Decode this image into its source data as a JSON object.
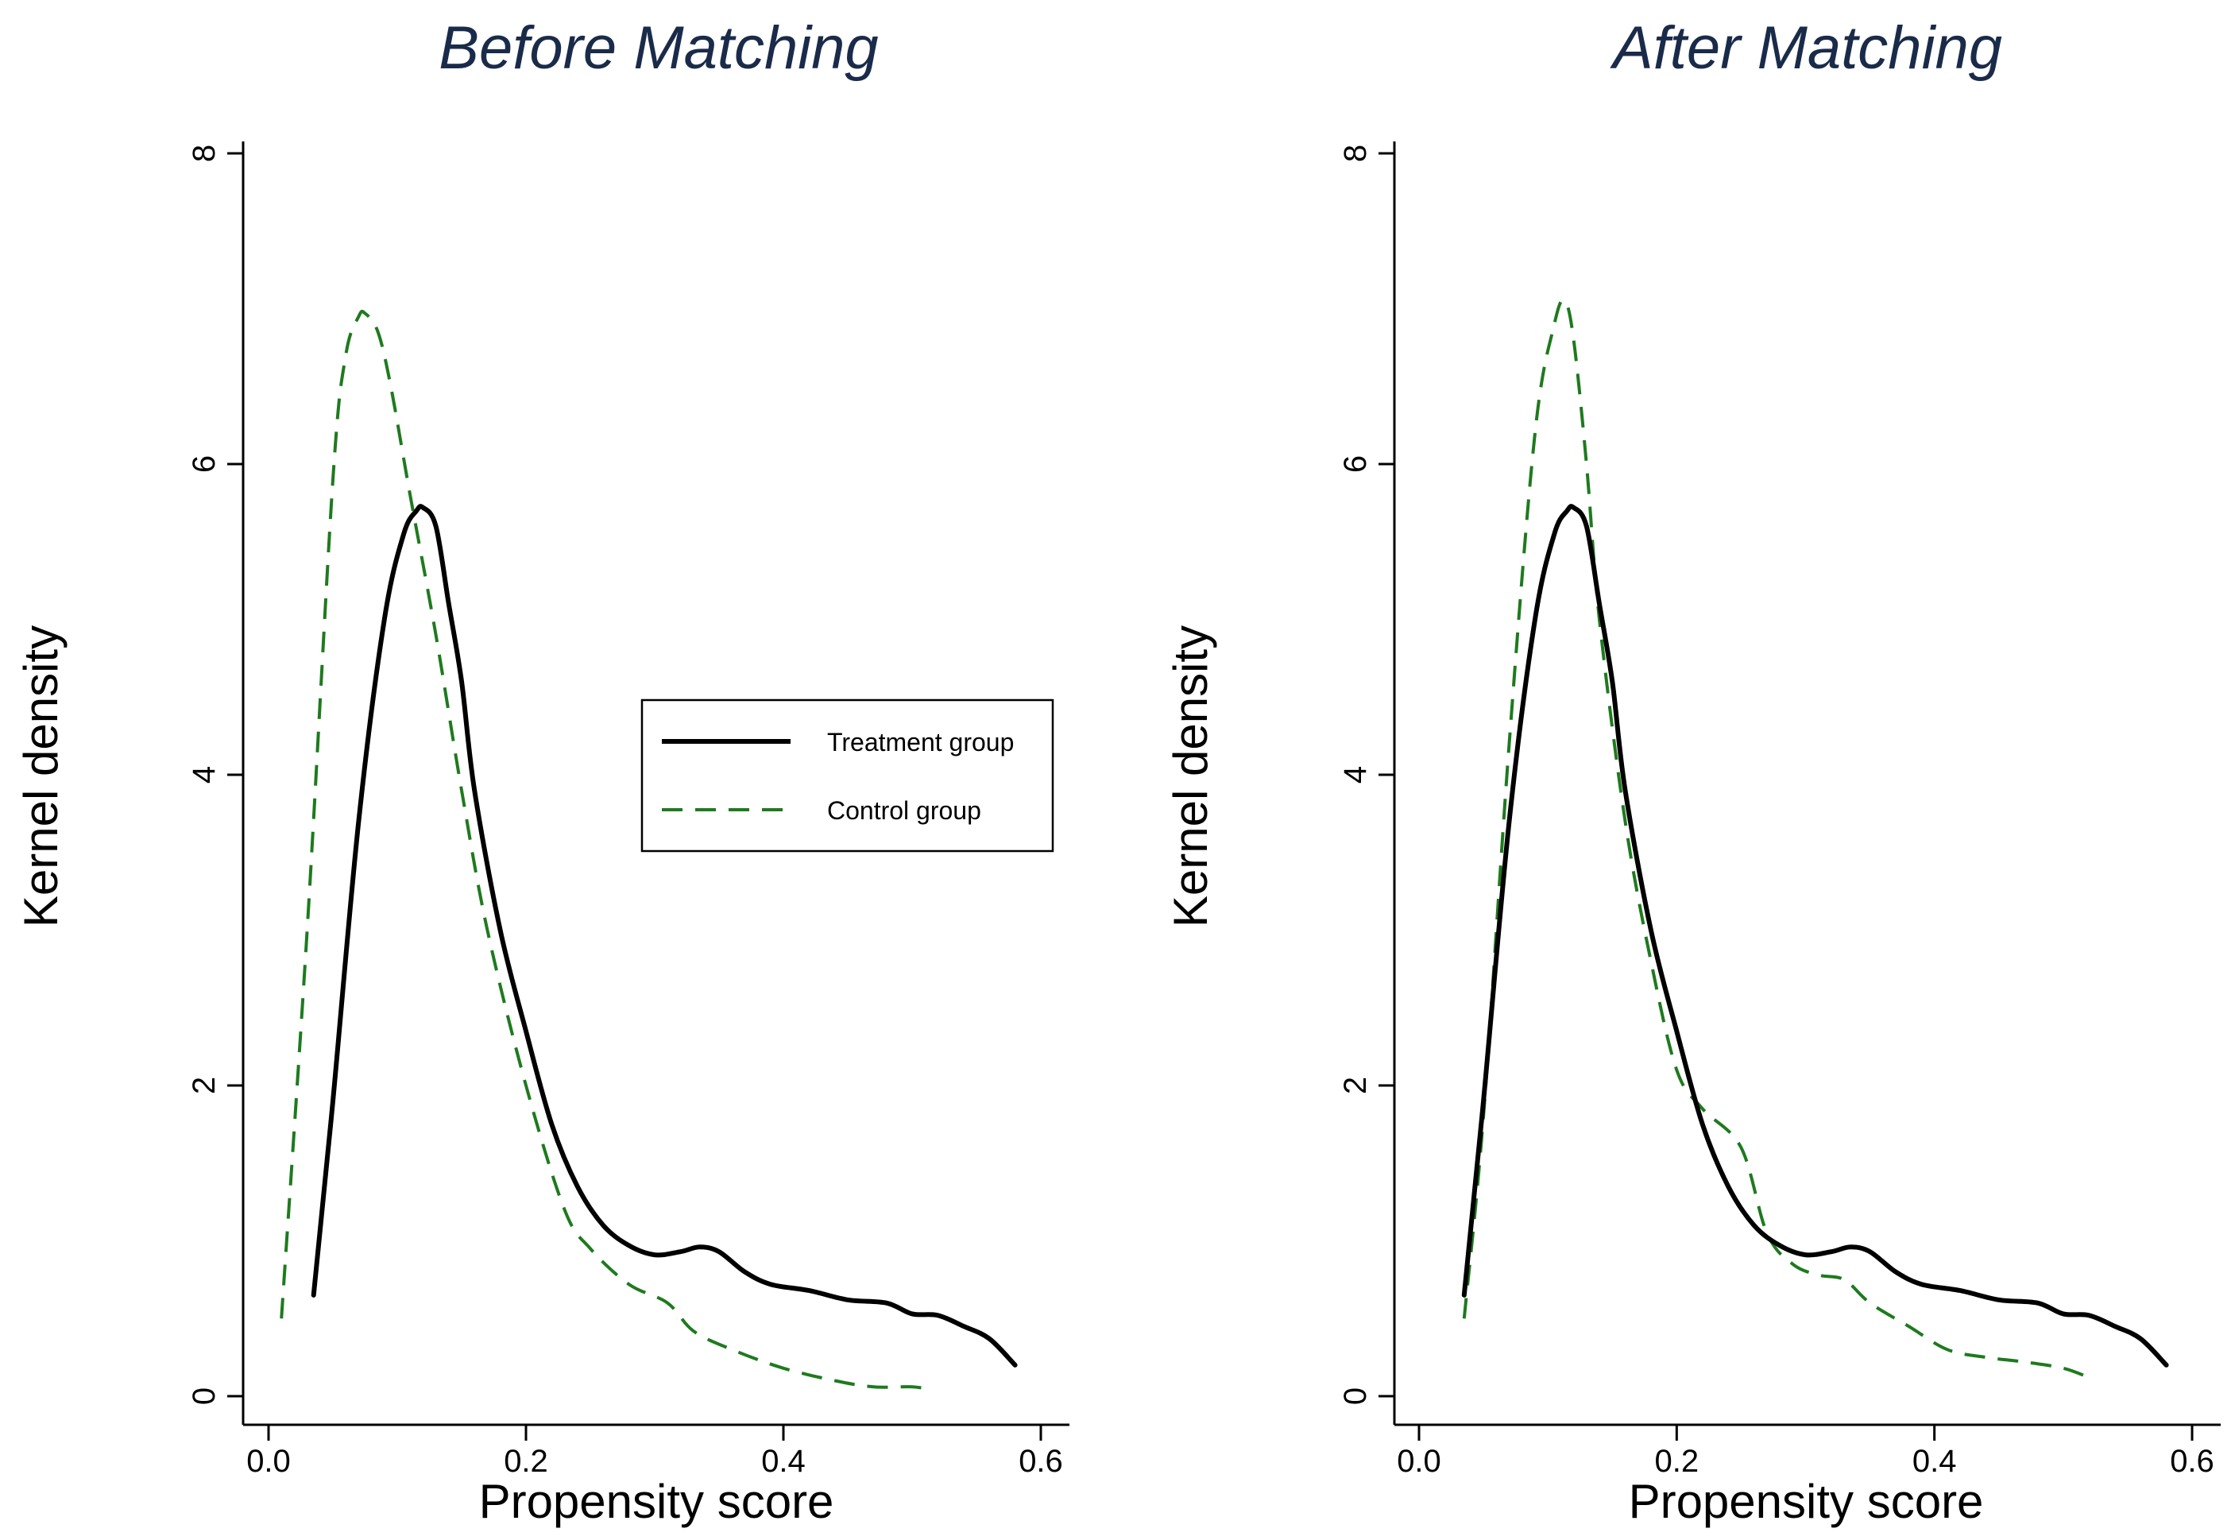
{
  "chart_data": [
    {
      "type": "line",
      "title": "Before Matching",
      "xlabel": "Propensity score",
      "ylabel": "Kernel density",
      "xlim": [
        0.0,
        0.6
      ],
      "ylim": [
        0,
        8
      ],
      "xticks": [
        "0.0",
        "0.2",
        "0.4",
        "0.6"
      ],
      "yticks": [
        "0",
        "2",
        "4",
        "6",
        "8"
      ],
      "legend": {
        "placement": "center-right",
        "entries": [
          "Treatment group",
          "Control group"
        ]
      },
      "series": [
        {
          "name": "Treatment group",
          "style": "solid",
          "color": "#000000",
          "x": [
            0.035,
            0.05,
            0.07,
            0.09,
            0.105,
            0.115,
            0.12,
            0.13,
            0.14,
            0.15,
            0.16,
            0.18,
            0.2,
            0.22,
            0.24,
            0.26,
            0.28,
            0.3,
            0.32,
            0.335,
            0.35,
            0.37,
            0.39,
            0.42,
            0.45,
            0.48,
            0.5,
            0.52,
            0.54,
            0.56,
            0.58
          ],
          "values": [
            0.65,
            1.9,
            3.7,
            5.0,
            5.55,
            5.7,
            5.72,
            5.6,
            5.1,
            4.6,
            3.9,
            3.0,
            2.35,
            1.75,
            1.35,
            1.1,
            0.97,
            0.91,
            0.93,
            0.96,
            0.93,
            0.8,
            0.72,
            0.68,
            0.62,
            0.6,
            0.53,
            0.52,
            0.45,
            0.37,
            0.2
          ]
        },
        {
          "name": "Control group",
          "style": "dashed",
          "color": "#1e7a1e",
          "x": [
            0.01,
            0.03,
            0.05,
            0.06,
            0.07,
            0.075,
            0.085,
            0.095,
            0.11,
            0.13,
            0.15,
            0.17,
            0.2,
            0.23,
            0.25,
            0.28,
            0.31,
            0.33,
            0.36,
            0.4,
            0.44,
            0.47,
            0.5,
            0.515
          ],
          "values": [
            0.5,
            3.0,
            5.9,
            6.7,
            6.95,
            6.97,
            6.85,
            6.5,
            5.8,
            4.9,
            3.9,
            3.0,
            2.0,
            1.2,
            0.95,
            0.72,
            0.6,
            0.42,
            0.3,
            0.18,
            0.1,
            0.06,
            0.06,
            0.04
          ]
        }
      ]
    },
    {
      "type": "line",
      "title": "After Matching",
      "xlabel": "Propensity score",
      "ylabel": "Kernel density",
      "xlim": [
        0.0,
        0.6
      ],
      "ylim": [
        0,
        8
      ],
      "xticks": [
        "0.0",
        "0.2",
        "0.4",
        "0.6"
      ],
      "yticks": [
        "0",
        "2",
        "4",
        "6",
        "8"
      ],
      "series": [
        {
          "name": "Treatment group",
          "style": "solid",
          "color": "#000000",
          "x": [
            0.035,
            0.05,
            0.07,
            0.09,
            0.105,
            0.115,
            0.12,
            0.13,
            0.14,
            0.15,
            0.16,
            0.18,
            0.2,
            0.22,
            0.24,
            0.26,
            0.28,
            0.3,
            0.32,
            0.335,
            0.35,
            0.37,
            0.39,
            0.42,
            0.45,
            0.48,
            0.5,
            0.52,
            0.54,
            0.56,
            0.58
          ],
          "values": [
            0.65,
            1.9,
            3.7,
            5.0,
            5.55,
            5.7,
            5.72,
            5.6,
            5.1,
            4.6,
            3.9,
            3.0,
            2.35,
            1.75,
            1.35,
            1.1,
            0.97,
            0.91,
            0.93,
            0.96,
            0.93,
            0.8,
            0.72,
            0.68,
            0.62,
            0.6,
            0.53,
            0.52,
            0.45,
            0.37,
            0.2
          ]
        },
        {
          "name": "Control group",
          "style": "dashed",
          "color": "#1e7a1e",
          "x": [
            0.035,
            0.05,
            0.07,
            0.09,
            0.105,
            0.113,
            0.12,
            0.13,
            0.14,
            0.16,
            0.18,
            0.2,
            0.22,
            0.25,
            0.27,
            0.29,
            0.31,
            0.33,
            0.35,
            0.38,
            0.41,
            0.44,
            0.47,
            0.5,
            0.52
          ],
          "values": [
            0.5,
            1.8,
            4.2,
            6.2,
            6.9,
            7.05,
            6.8,
            6.0,
            5.0,
            3.7,
            2.8,
            2.1,
            1.85,
            1.6,
            1.05,
            0.85,
            0.78,
            0.75,
            0.6,
            0.45,
            0.3,
            0.25,
            0.22,
            0.18,
            0.12
          ]
        }
      ]
    }
  ]
}
